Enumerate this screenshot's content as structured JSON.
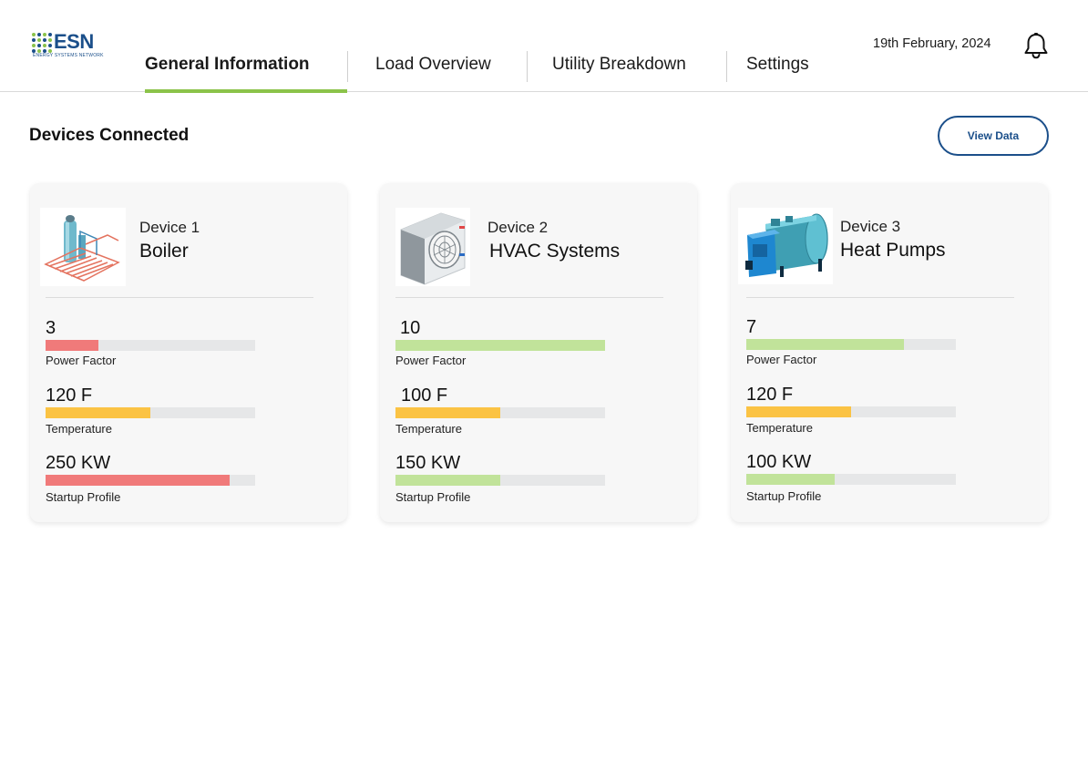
{
  "logo": {
    "text": "ESN",
    "subtext": "ENERGY SYSTEMS NETWORK"
  },
  "tabs": [
    {
      "label": "General Information",
      "active": true
    },
    {
      "label": "Load Overview",
      "active": false
    },
    {
      "label": "Utility Breakdown",
      "active": false
    },
    {
      "label": "Settings",
      "active": false
    }
  ],
  "header": {
    "date": "19th February, 2024",
    "notification_icon": "bell-icon"
  },
  "section": {
    "title": "Devices Connected",
    "view_data_label": "View Data"
  },
  "colors": {
    "accent": "#8bc34a",
    "brand": "#1b4f8a",
    "red": "#f07a7a",
    "yellow": "#fbc344",
    "green": "#c1e39a",
    "track": "#e6e7e8"
  },
  "devices": [
    {
      "number": "Device 1",
      "name": "Boiler",
      "icon": "boiler-icon",
      "metrics": [
        {
          "value": "3",
          "label": "Power Factor",
          "level": 0.25,
          "color": "#f07a7a"
        },
        {
          "value": "120 F",
          "label": "Temperature",
          "level": 0.5,
          "color": "#fbc344"
        },
        {
          "value": "250 KW",
          "label": "Startup Profile",
          "level": 0.88,
          "color": "#f07a7a"
        }
      ]
    },
    {
      "number": "Device 2",
      "name": "HVAC Systems",
      "icon": "hvac-unit-icon",
      "metrics": [
        {
          "value": "10",
          "label": "Power Factor",
          "level": 1.0,
          "color": "#c1e39a"
        },
        {
          "value": "100 F",
          "label": "Temperature",
          "level": 0.5,
          "color": "#fbc344"
        },
        {
          "value": "150 KW",
          "label": "Startup Profile",
          "level": 0.5,
          "color": "#c1e39a"
        }
      ]
    },
    {
      "number": "Device 3",
      "name": "Heat Pumps",
      "icon": "heat-pump-icon",
      "metrics": [
        {
          "value": "7",
          "label": "Power Factor",
          "level": 0.75,
          "color": "#c1e39a"
        },
        {
          "value": "120 F",
          "label": "Temperature",
          "level": 0.5,
          "color": "#fbc344"
        },
        {
          "value": "100 KW",
          "label": "Startup Profile",
          "level": 0.42,
          "color": "#c1e39a"
        }
      ]
    }
  ]
}
